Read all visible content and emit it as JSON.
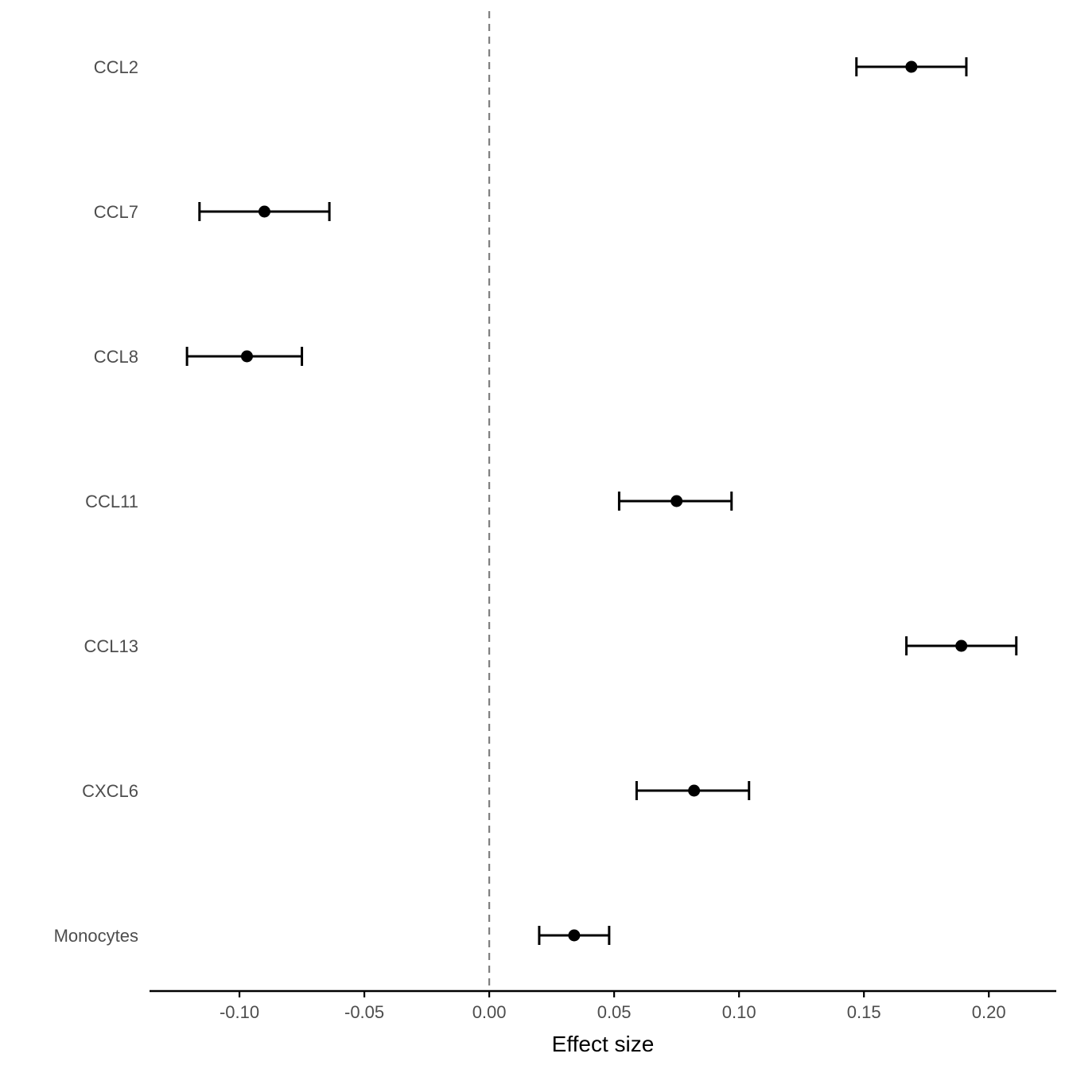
{
  "chart_data": {
    "type": "forest",
    "title": "",
    "xlabel": "Effect size",
    "ylabel": "",
    "xlim": [
      -0.136,
      0.227
    ],
    "x_ticks": [
      -0.1,
      -0.05,
      0.0,
      0.05,
      0.1,
      0.15,
      0.2
    ],
    "x_tick_labels": [
      "-0.10",
      "-0.05",
      "0.00",
      "0.05",
      "0.10",
      "0.15",
      "0.20"
    ],
    "reference_line": 0.0,
    "grid": false,
    "categories": [
      "CCL2",
      "CCL7",
      "CCL8",
      "CCL11",
      "CCL13",
      "CXCL6",
      "Monocytes"
    ],
    "estimates": [
      0.169,
      -0.09,
      -0.097,
      0.075,
      0.189,
      0.082,
      0.034
    ],
    "lower": [
      0.147,
      -0.116,
      -0.121,
      0.052,
      0.167,
      0.059,
      0.02
    ],
    "upper": [
      0.191,
      -0.064,
      -0.075,
      0.097,
      0.211,
      0.104,
      0.048
    ]
  },
  "colors": {
    "point": "#000000",
    "errorbar": "#000000",
    "reference_line": "#808080",
    "axis": "#000000",
    "tick_text": "#4d4d4d"
  }
}
